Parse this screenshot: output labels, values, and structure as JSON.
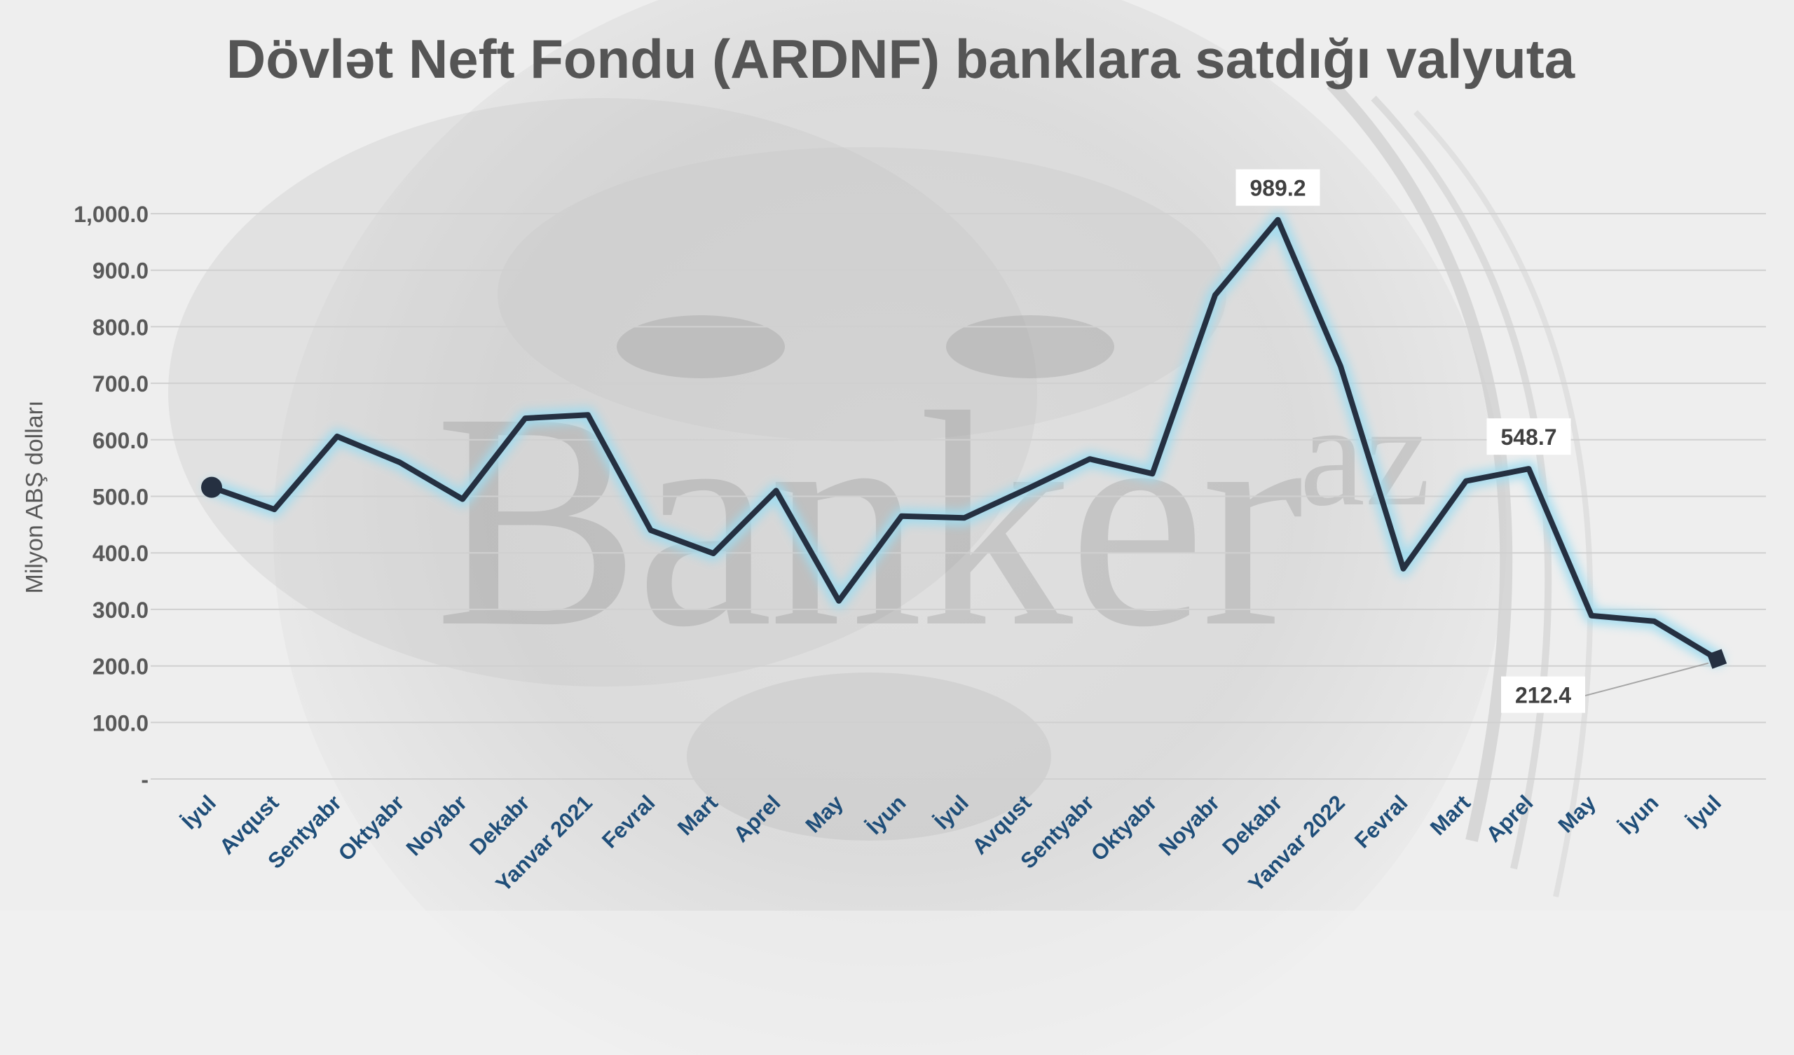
{
  "chart_data": {
    "type": "line",
    "title": "Dövlət Neft Fondu (ARDNF) banklara satdığı valyuta",
    "watermark": "Banker",
    "watermark_sup": "az",
    "xlabel": "",
    "ylabel": "Milyon ABŞ dolları",
    "ylim": [
      0,
      1000
    ],
    "yticks": [
      0,
      100,
      200,
      300,
      400,
      500,
      600,
      700,
      800,
      900,
      1000
    ],
    "ytick_labels": [
      "-",
      "100.0",
      "200.0",
      "300.0",
      "400.0",
      "500.0",
      "600.0",
      "700.0",
      "800.0",
      "900.0",
      "1,000.0"
    ],
    "grid": true,
    "legend": "none",
    "categories": [
      "İyul",
      "Avqust",
      "Sentyabr",
      "Oktyabr",
      "Noyabr",
      "Dekabr",
      "Yanvar 2021",
      "Fevral",
      "Mart",
      "Aprel",
      "May",
      "İyun",
      "İyul",
      "Avqust",
      "Sentyabr",
      "Oktyabr",
      "Noyabr",
      "Dekabr",
      "Yanvar 2022",
      "Fevral",
      "Mart",
      "Aprel",
      "May",
      "İyun",
      "İyul"
    ],
    "series": [
      {
        "values": [
          516,
          477,
          606,
          560,
          495,
          638,
          644,
          440,
          399,
          510,
          315,
          465,
          462,
          513,
          566,
          540,
          856,
          989.2,
          730,
          372,
          527,
          548.7,
          289,
          279,
          212.4
        ]
      }
    ],
    "annotations": [
      {
        "index": 17,
        "label": "989.2"
      },
      {
        "index": 21,
        "label": "548.7"
      },
      {
        "index": 24,
        "label": "212.4"
      }
    ],
    "colors": {
      "line": "#253041",
      "glow": "#9fdcf0",
      "tick_label": "#1f4e79",
      "value_label": "#404040",
      "grid": "#d0d0d0",
      "title": "#555555"
    }
  }
}
